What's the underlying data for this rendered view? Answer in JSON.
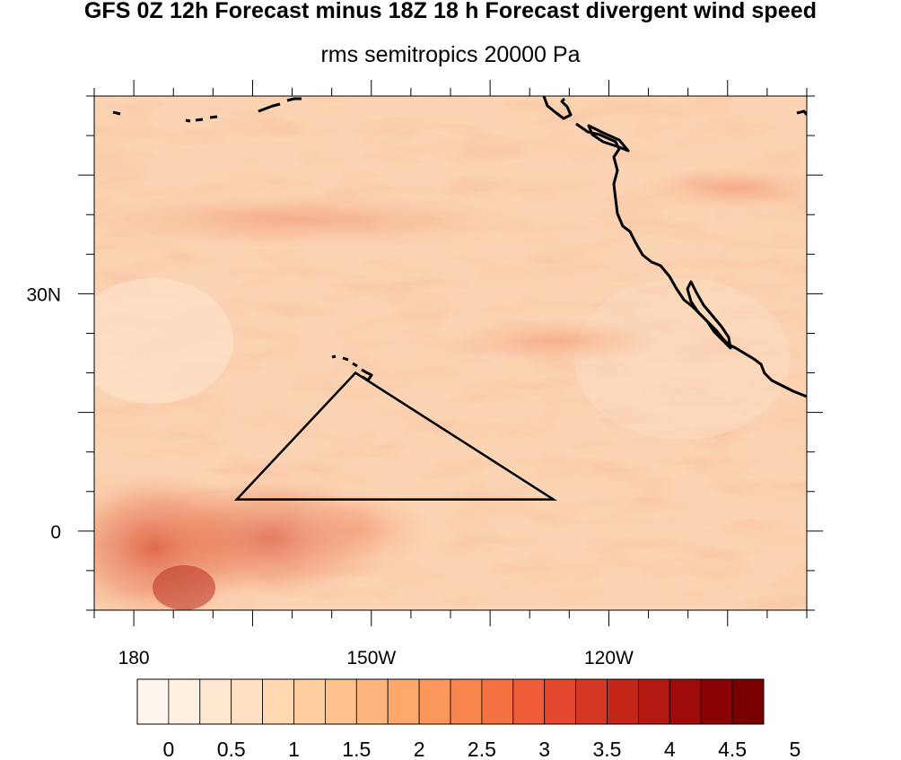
{
  "title": "GFS 0Z 12h Forecast minus 18Z 18 h Forecast divergent wind speed",
  "subtitle": "rms semitropics 20000 Pa",
  "map": {
    "lon_range": [
      175,
      265
    ],
    "lat_range": [
      -10,
      55
    ],
    "lon_ticks": [
      {
        "lon": 180,
        "label": "180"
      },
      {
        "lon": 210,
        "label": "150W"
      },
      {
        "lon": 240,
        "label": "120W"
      }
    ],
    "lat_ticks": [
      {
        "lat": 0,
        "label": "0"
      },
      {
        "lat": 30,
        "label": "30N"
      }
    ],
    "triangle_vertices": [
      [
        193,
        4
      ],
      [
        233,
        4
      ],
      [
        208,
        20
      ]
    ]
  },
  "colorbar": {
    "labels": [
      "0",
      "0.5",
      "1",
      "1.5",
      "2",
      "2.5",
      "3",
      "3.5",
      "4",
      "4.5",
      "5"
    ],
    "colors": [
      "#fff7ee",
      "#fff0e0",
      "#ffe8d2",
      "#ffe0c2",
      "#ffd7b0",
      "#ffcd9e",
      "#ffc28c",
      "#ffb67c",
      "#fea86c",
      "#fb975c",
      "#f8854e",
      "#f47142",
      "#ee5c38",
      "#e3482e",
      "#d53724",
      "#c4261a",
      "#b21712",
      "#9f0b0a",
      "#8b0405",
      "#780000"
    ]
  }
}
